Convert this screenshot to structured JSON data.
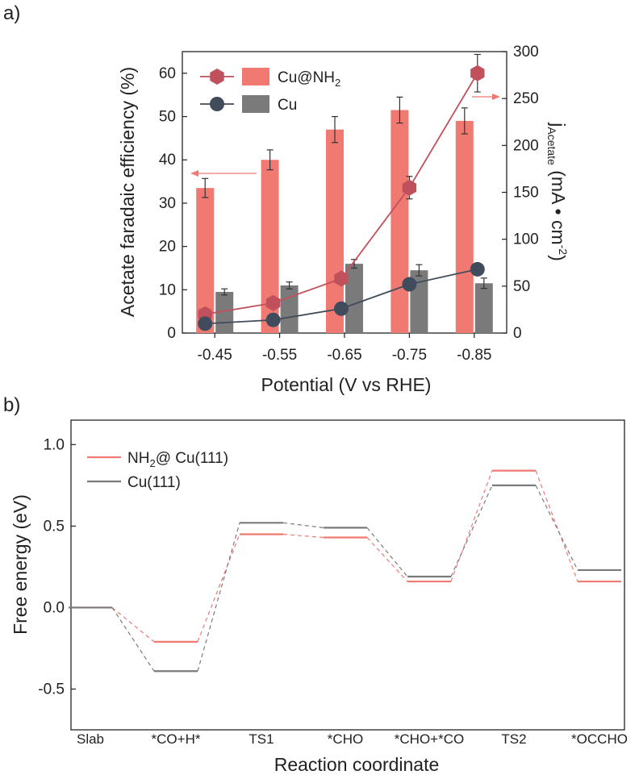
{
  "colors": {
    "cu_nh2": "#f07a72",
    "cu_nh2_marker": "#c0505c",
    "cu": "#7a7a7a",
    "cu_marker": "#404c5c",
    "axis": "#222222",
    "arrow": "#f07a72"
  },
  "chart_data": [
    {
      "type": "bar",
      "panel_label": "a)",
      "xlabel": "Potential (V vs RHE)",
      "ylabel": "Acetate faradaic efficiency (%)",
      "y2label_main": "j",
      "y2label_sub": "Acetate",
      "y2label_rest": " (mA • cm",
      "y2label_sup": "-2",
      "y2label_end": ")",
      "categories": [
        "-0.45",
        "-0.55",
        "-0.65",
        "-0.75",
        "-0.85"
      ],
      "ylim": [
        0,
        65
      ],
      "y2lim": [
        0,
        300
      ],
      "yticks": [
        "0",
        "10",
        "20",
        "30",
        "40",
        "50",
        "60"
      ],
      "y2ticks": [
        "0",
        "50",
        "100",
        "150",
        "200",
        "250",
        "300"
      ],
      "series": [
        {
          "name": "Cu@NH",
          "name_sub": "2",
          "kind": "bar",
          "values": [
            33.5,
            40,
            47,
            51.5,
            49
          ],
          "errors": [
            2.2,
            2.3,
            3.0,
            3.0,
            3.0
          ]
        },
        {
          "name": "Cu",
          "kind": "bar",
          "values": [
            9.5,
            11,
            16,
            14.5,
            11.5
          ],
          "errors": [
            0.7,
            0.8,
            1.0,
            1.3,
            1.2
          ]
        },
        {
          "kind": "line",
          "axis": "right",
          "marker": "hexagon",
          "values": [
            20,
            32,
            58,
            155,
            277
          ],
          "errors": [
            0,
            0,
            0,
            12,
            20
          ]
        },
        {
          "kind": "line",
          "axis": "right",
          "marker": "circle",
          "values": [
            10,
            14,
            26,
            52,
            68
          ],
          "errors": [
            0,
            0,
            0,
            0,
            0
          ]
        }
      ]
    },
    {
      "type": "line",
      "panel_label": "b)",
      "xlabel": "Reaction coordinate",
      "ylabel": "Free energy (eV)",
      "categories": [
        "Slab",
        "*CO+H*",
        "TS1",
        "*CHO",
        "*CHO+*CO",
        "TS2",
        "*OCCHO"
      ],
      "ylim": [
        -0.75,
        1.15
      ],
      "yticks": [
        "-0.5",
        "0.0",
        "0.5",
        "1.0"
      ],
      "series": [
        {
          "name": "NH",
          "name_sub": "2",
          "name_rest": "@ Cu(111)",
          "values": [
            0.0,
            -0.21,
            0.45,
            0.43,
            0.16,
            0.84,
            0.16
          ]
        },
        {
          "name": "Cu(111)",
          "values": [
            0.0,
            -0.39,
            0.52,
            0.49,
            0.19,
            0.75,
            0.23
          ]
        }
      ]
    }
  ]
}
